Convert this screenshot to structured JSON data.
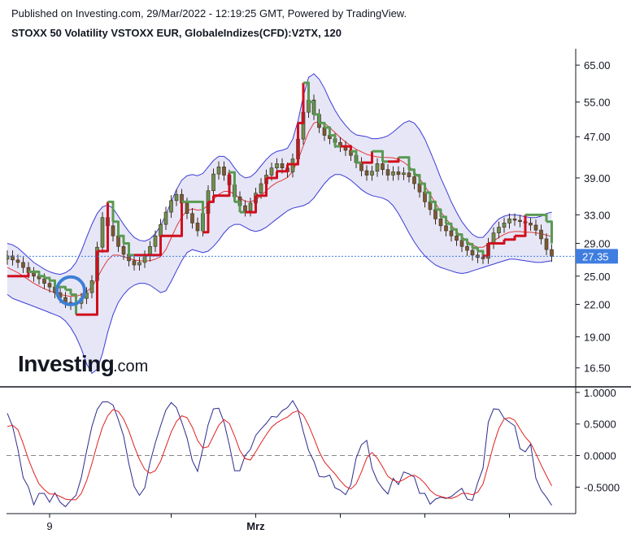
{
  "header": {
    "published": "Published on Investing.com, 29/Mar/2022 - 12:19:25 GMT, Powered by TradingView.",
    "title": "STOXX 50 Volatility VSTOXX EUR, GlobaleIndizes(CFD):V2TX, 120"
  },
  "logo": {
    "main": "Investing",
    "suffix": ".com"
  },
  "colors": {
    "candle_up": "#6f8f4e",
    "candle_down": "#3a2a1a",
    "bollinger_band": "#3c3cd6",
    "bollinger_fill": "#e6e6f7",
    "bollinger_mid": "#e03a3a",
    "supertrend_up": "#5a9a52",
    "supertrend_down": "#d10f1d",
    "oscillator_main": "#2b2b8c",
    "oscillator_signal": "#e02020",
    "last_price_bg": "#3f7ee0",
    "marker_circle": "#3d7fd6"
  },
  "chart_data": [
    {
      "type": "candlestick",
      "title": "STOXX 50 Volatility VSTOXX EUR, GlobaleIndizes(CFD):V2TX, 120",
      "scale": "log",
      "ylim": [
        15.2,
        70
      ],
      "y_ticks": [
        "65.00",
        "55.00",
        "47.00",
        "39.00",
        "33.00",
        "29.00",
        "25.00",
        "22.00",
        "19.00",
        "16.50"
      ],
      "y_tick_values": [
        65,
        55,
        47,
        39,
        33,
        29,
        25,
        22,
        19,
        16.5
      ],
      "last_price": 27.35,
      "last_price_label": "27.35",
      "x_labels": [
        "9",
        "Mrz"
      ],
      "x_label_indexes": [
        8,
        47
      ],
      "close": [
        27.4,
        26.9,
        26.6,
        26.0,
        25.4,
        25.0,
        24.7,
        24.2,
        23.8,
        23.2,
        22.7,
        22.2,
        22.0,
        22.1,
        22.6,
        23.2,
        24.5,
        28.5,
        32.6,
        31.4,
        30.0,
        28.6,
        27.6,
        26.8,
        26.3,
        26.6,
        27.4,
        28.6,
        30.0,
        31.6,
        33.4,
        35.2,
        36.2,
        34.8,
        33.2,
        31.8,
        30.7,
        33.2,
        36.8,
        39.7,
        41.0,
        39.5,
        37.8,
        35.8,
        34.4,
        33.6,
        34.8,
        36.4,
        38.0,
        39.5,
        40.8,
        41.6,
        40.8,
        40.1,
        42.5,
        46.5,
        52.5,
        55.5,
        52.0,
        49.0,
        47.3,
        46.6,
        45.8,
        45.0,
        44.2,
        43.2,
        41.8,
        40.3,
        39.5,
        40.2,
        41.6,
        40.5,
        39.5,
        40.1,
        39.6,
        39.9,
        39.2,
        38.0,
        36.6,
        35.0,
        33.8,
        32.4,
        31.4,
        30.7,
        30.0,
        29.4,
        28.6,
        28.1,
        27.5,
        27.2,
        27.1,
        29.0,
        30.4,
        31.2,
        31.8,
        32.4,
        32.2,
        32.0,
        31.8,
        31.5,
        30.8,
        29.6,
        28.2,
        27.35
      ],
      "open": [
        27.0,
        27.4,
        26.9,
        26.6,
        26.0,
        25.4,
        25.0,
        24.7,
        24.2,
        23.8,
        23.2,
        22.7,
        22.2,
        22.0,
        22.1,
        22.6,
        23.2,
        24.5,
        28.5,
        32.6,
        31.4,
        30.0,
        28.6,
        27.6,
        26.8,
        26.3,
        26.6,
        27.4,
        28.6,
        30.0,
        31.6,
        33.4,
        35.2,
        36.2,
        34.8,
        33.2,
        31.8,
        30.7,
        33.2,
        36.8,
        39.7,
        41.0,
        39.5,
        37.8,
        35.8,
        34.4,
        33.6,
        34.8,
        36.4,
        38.0,
        39.5,
        40.8,
        41.6,
        40.8,
        40.1,
        42.5,
        46.5,
        52.5,
        55.5,
        52.0,
        49.0,
        47.3,
        46.6,
        45.8,
        45.0,
        44.2,
        43.2,
        41.8,
        40.3,
        39.5,
        40.2,
        41.6,
        40.5,
        39.5,
        40.1,
        39.6,
        39.9,
        39.2,
        38.0,
        36.6,
        35.0,
        33.8,
        32.4,
        31.4,
        30.7,
        30.0,
        29.4,
        28.6,
        28.1,
        27.5,
        27.2,
        27.1,
        29.0,
        30.4,
        31.2,
        31.8,
        32.4,
        32.2,
        32.0,
        31.8,
        31.5,
        30.8,
        29.6,
        28.2
      ],
      "bollinger_upper": [
        29.0,
        28.8,
        28.4,
        27.8,
        27.2,
        26.6,
        26.2,
        25.8,
        25.5,
        25.3,
        25.2,
        25.4,
        25.8,
        26.6,
        28.0,
        29.8,
        31.6,
        33.2,
        34.2,
        34.5,
        34.0,
        32.8,
        31.6,
        30.6,
        29.8,
        29.4,
        29.3,
        29.6,
        30.3,
        31.4,
        33.0,
        35.0,
        37.0,
        38.6,
        39.4,
        39.6,
        39.4,
        39.8,
        41.0,
        42.2,
        43.0,
        43.0,
        42.2,
        40.8,
        39.6,
        39.0,
        39.2,
        40.0,
        41.2,
        42.4,
        43.4,
        44.0,
        44.2,
        44.6,
        46.5,
        50.5,
        56.5,
        61.5,
        62.5,
        61.0,
        58.5,
        55.5,
        53.0,
        51.0,
        49.5,
        48.2,
        47.4,
        47.2,
        47.0,
        46.6,
        46.6,
        46.8,
        47.2,
        48.0,
        49.0,
        50.0,
        50.5,
        50.0,
        48.5,
        46.5,
        44.0,
        41.5,
        39.0,
        37.0,
        35.0,
        33.4,
        32.0,
        31.0,
        30.2,
        29.8,
        29.8,
        30.6,
        31.6,
        32.4,
        32.8,
        33.0,
        33.0,
        32.9,
        32.7,
        32.6,
        32.6,
        32.8,
        33.2,
        33.4
      ],
      "bollinger_lower": [
        23.0,
        22.6,
        22.4,
        22.2,
        22.0,
        21.8,
        21.6,
        21.4,
        21.2,
        21.0,
        20.8,
        20.4,
        19.8,
        19.0,
        18.0,
        16.8,
        16.1,
        16.4,
        17.6,
        19.4,
        21.0,
        22.2,
        23.0,
        23.6,
        24.0,
        24.2,
        24.2,
        24.0,
        23.6,
        23.2,
        23.4,
        24.4,
        25.6,
        26.8,
        27.8,
        28.2,
        28.0,
        27.8,
        28.0,
        28.6,
        29.4,
        30.4,
        31.2,
        31.6,
        31.6,
        31.2,
        30.8,
        30.6,
        30.8,
        31.2,
        31.8,
        32.4,
        33.0,
        33.6,
        34.0,
        34.2,
        34.4,
        34.8,
        35.6,
        36.8,
        38.0,
        39.0,
        39.6,
        39.6,
        39.2,
        38.6,
        37.8,
        37.0,
        36.4,
        36.0,
        35.8,
        35.6,
        35.2,
        34.4,
        33.2,
        31.8,
        30.4,
        29.2,
        28.2,
        27.4,
        26.8,
        26.3,
        26.0,
        25.8,
        25.6,
        25.4,
        25.3,
        25.4,
        25.6,
        25.8,
        26.0,
        26.2,
        26.4,
        26.6,
        26.8,
        27.0,
        27.0,
        26.9,
        26.8,
        26.7,
        26.6,
        26.6,
        26.7,
        26.8
      ],
      "bollinger_middle": [
        26.0,
        25.7,
        25.4,
        25.0,
        24.6,
        24.2,
        23.9,
        23.6,
        23.4,
        23.2,
        23.0,
        22.9,
        22.8,
        22.8,
        23.0,
        23.3,
        23.8,
        24.8,
        25.9,
        26.9,
        27.5,
        27.5,
        27.3,
        27.1,
        26.9,
        26.8,
        26.8,
        26.8,
        27.0,
        27.3,
        28.2,
        29.7,
        31.3,
        32.7,
        33.6,
        33.9,
        33.7,
        33.8,
        34.5,
        35.4,
        36.2,
        36.7,
        36.7,
        36.2,
        35.6,
        35.1,
        35.0,
        35.3,
        36.0,
        36.8,
        37.6,
        38.2,
        38.6,
        39.1,
        40.2,
        42.3,
        45.1,
        48.0,
        50.0,
        50.4,
        50.0,
        49.0,
        47.9,
        46.8,
        45.9,
        45.1,
        44.4,
        43.9,
        43.4,
        43.1,
        42.9,
        42.8,
        42.8,
        42.7,
        42.4,
        41.9,
        41.1,
        40.1,
        38.9,
        37.6,
        36.2,
        34.8,
        33.5,
        32.4,
        31.5,
        30.6,
        29.9,
        29.3,
        28.8,
        28.5,
        28.5,
        28.9,
        29.3,
        29.8,
        30.2,
        30.5,
        30.6,
        30.6,
        30.5,
        30.5,
        30.4,
        30.3,
        30.1,
        29.9
      ],
      "supertrend": [
        25.0,
        25.0,
        25.0,
        25.0,
        25.5,
        25.5,
        25.0,
        24.8,
        24.5,
        23.8,
        23.8,
        23.5,
        23.0,
        21.0,
        21.0,
        21.0,
        21.0,
        28.0,
        28.0,
        35.0,
        32.0,
        30.0,
        29.0,
        27.5,
        27.5,
        27.5,
        27.5,
        27.5,
        27.5,
        30.0,
        30.0,
        30.0,
        30.0,
        35.0,
        35.0,
        35.0,
        35.0,
        30.5,
        35.0,
        36.0,
        36.0,
        36.0,
        40.0,
        35.0,
        33.4,
        33.4,
        33.4,
        36.0,
        36.0,
        39.0,
        39.0,
        40.2,
        40.2,
        41.5,
        41.5,
        50.0,
        60.0,
        55.0,
        52.0,
        50.0,
        49.0,
        47.3,
        45.0,
        45.0,
        45.0,
        44.0,
        41.8,
        41.8,
        41.8,
        44.0,
        44.0,
        42.0,
        42.0,
        42.0,
        42.8,
        42.8,
        40.5,
        39.5,
        38.0,
        36.5,
        35.0,
        33.8,
        32.7,
        31.7,
        30.9,
        30.2,
        29.5,
        28.9,
        28.4,
        28.0,
        27.4,
        29.0,
        29.0,
        29.0,
        29.5,
        29.5,
        30.0,
        30.0,
        33.0,
        33.0,
        33.0,
        33.0,
        32.0,
        29.0
      ],
      "supertrend_direction": [
        "down",
        "down",
        "down",
        "down",
        "up",
        "up",
        "up",
        "up",
        "up",
        "up",
        "up",
        "up",
        "up",
        "down",
        "down",
        "down",
        "down",
        "down",
        "down",
        "up",
        "up",
        "up",
        "up",
        "up",
        "down",
        "down",
        "down",
        "down",
        "down",
        "down",
        "down",
        "down",
        "down",
        "up",
        "up",
        "up",
        "up",
        "down",
        "down",
        "down",
        "down",
        "down",
        "up",
        "up",
        "up",
        "down",
        "down",
        "down",
        "down",
        "down",
        "down",
        "down",
        "down",
        "down",
        "down",
        "down",
        "up",
        "up",
        "up",
        "up",
        "up",
        "up",
        "up",
        "down",
        "down",
        "up",
        "up",
        "down",
        "down",
        "up",
        "up",
        "up",
        "down",
        "down",
        "up",
        "up",
        "up",
        "up",
        "up",
        "up",
        "up",
        "up",
        "up",
        "up",
        "up",
        "up",
        "up",
        "up",
        "up",
        "up",
        "down",
        "down",
        "down",
        "down",
        "down",
        "down",
        "down",
        "down",
        "up",
        "up",
        "up",
        "up",
        "up",
        "up"
      ]
    },
    {
      "type": "line",
      "y_ticks": [
        "1.0000",
        "0.5000",
        "0.0000",
        "-0.5000"
      ],
      "y_tick_values": [
        1.0,
        0.5,
        0.0,
        -0.5
      ],
      "ylim": [
        -0.92,
        1.05
      ],
      "series": [
        {
          "values": [
            0.67,
            0.46,
            0.1,
            -0.35,
            -0.5,
            -0.78,
            -0.6,
            -0.6,
            -0.74,
            -0.59,
            -0.74,
            -0.81,
            -0.71,
            -0.63,
            -0.35,
            0.07,
            0.46,
            0.73,
            0.85,
            0.85,
            0.8,
            0.57,
            0.31,
            -0.13,
            -0.49,
            -0.63,
            -0.51,
            -0.11,
            0.2,
            0.47,
            0.72,
            0.84,
            0.76,
            0.53,
            0.28,
            -0.08,
            -0.25,
            0.11,
            0.49,
            0.74,
            0.75,
            0.53,
            0.17,
            -0.24,
            -0.24,
            0.0,
            0.1,
            0.32,
            0.42,
            0.51,
            0.62,
            0.61,
            0.71,
            0.76,
            0.87,
            0.72,
            0.38,
            0.08,
            -0.09,
            -0.33,
            -0.34,
            -0.31,
            -0.51,
            -0.55,
            -0.62,
            -0.46,
            -0.04,
            0.17,
            0.24,
            -0.2,
            -0.4,
            -0.52,
            -0.61,
            -0.36,
            -0.46,
            -0.26,
            -0.29,
            -0.34,
            -0.6,
            -0.6,
            -0.77,
            -0.69,
            -0.66,
            -0.68,
            -0.65,
            -0.58,
            -0.52,
            -0.69,
            -0.71,
            -0.43,
            -0.2,
            0.53,
            0.74,
            0.73,
            0.59,
            0.53,
            0.47,
            0.11,
            0.06,
            0.18,
            -0.36,
            -0.55,
            -0.66,
            -0.79
          ]
        },
        {
          "values": [
            0.46,
            0.48,
            0.41,
            0.19,
            -0.06,
            -0.27,
            -0.45,
            -0.54,
            -0.61,
            -0.61,
            -0.65,
            -0.69,
            -0.7,
            -0.7,
            -0.6,
            -0.4,
            -0.13,
            0.18,
            0.45,
            0.63,
            0.73,
            0.7,
            0.58,
            0.39,
            0.15,
            -0.06,
            -0.22,
            -0.28,
            -0.24,
            -0.09,
            0.14,
            0.37,
            0.54,
            0.63,
            0.6,
            0.45,
            0.24,
            0.12,
            0.14,
            0.31,
            0.48,
            0.57,
            0.51,
            0.31,
            0.08,
            -0.05,
            -0.07,
            0.06,
            0.2,
            0.33,
            0.45,
            0.52,
            0.57,
            0.61,
            0.68,
            0.71,
            0.64,
            0.48,
            0.28,
            0.06,
            -0.1,
            -0.2,
            -0.29,
            -0.4,
            -0.49,
            -0.53,
            -0.45,
            -0.26,
            -0.04,
            0.05,
            -0.04,
            -0.18,
            -0.33,
            -0.39,
            -0.42,
            -0.38,
            -0.33,
            -0.31,
            -0.36,
            -0.44,
            -0.55,
            -0.62,
            -0.65,
            -0.67,
            -0.68,
            -0.65,
            -0.6,
            -0.6,
            -0.62,
            -0.58,
            -0.45,
            -0.15,
            0.17,
            0.43,
            0.58,
            0.6,
            0.56,
            0.42,
            0.29,
            0.2,
            0.03,
            -0.15,
            -0.32,
            -0.48
          ]
        }
      ]
    }
  ]
}
